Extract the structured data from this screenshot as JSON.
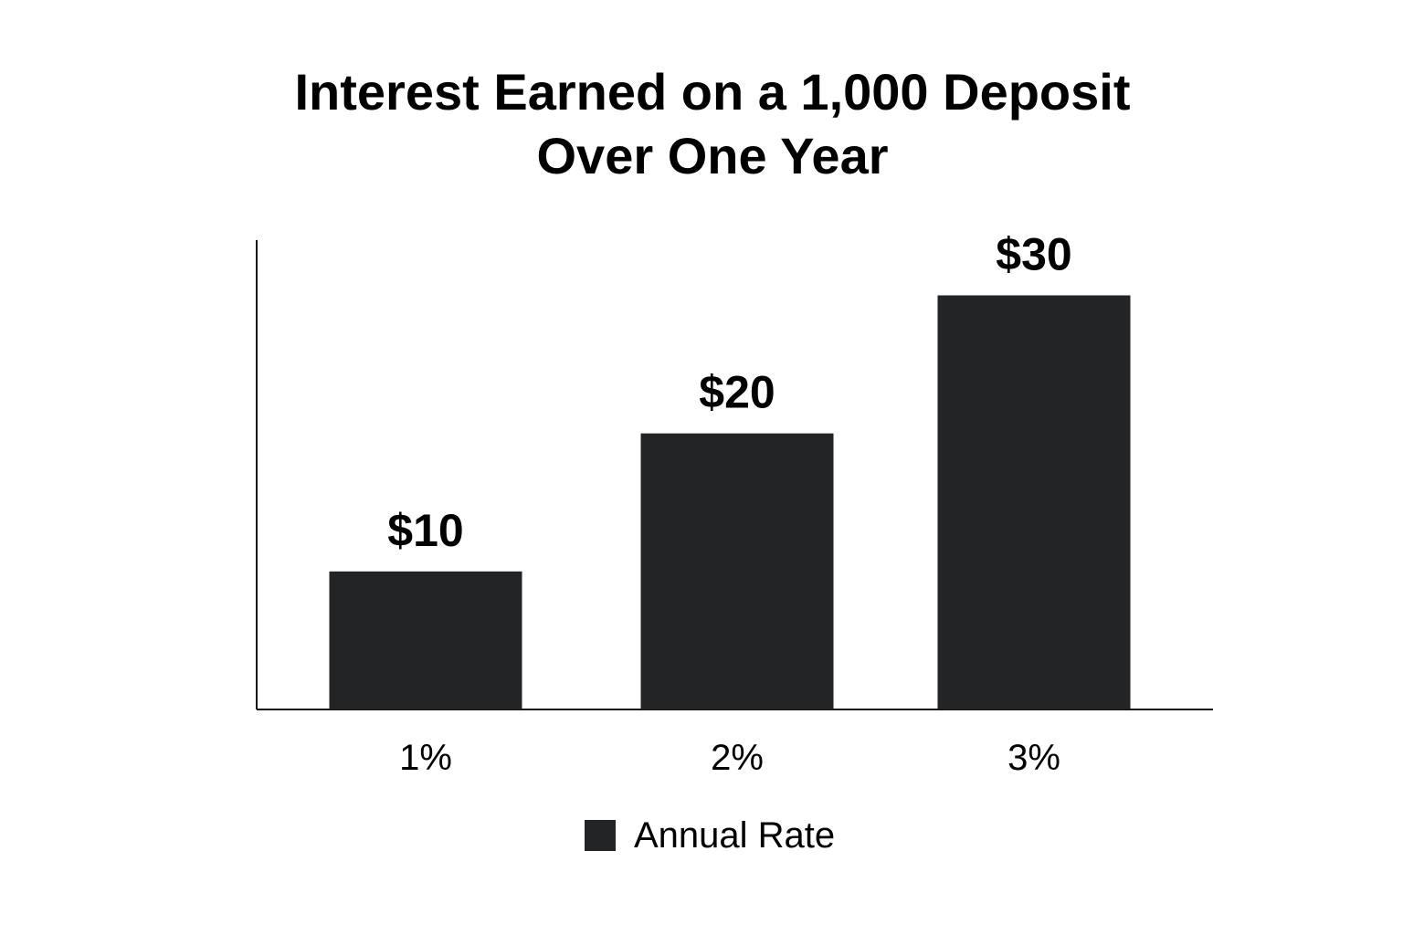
{
  "chart_data": {
    "type": "bar",
    "title": [
      "Interest Earned on a 1,000 Deposit",
      "Over One Year"
    ],
    "categories": [
      "1%",
      "2%",
      "3%"
    ],
    "values": [
      10,
      20,
      30
    ],
    "value_labels": [
      "$10",
      "$20",
      "$30"
    ],
    "xlabel": "",
    "ylabel": "",
    "ylim": [
      0,
      34
    ],
    "grid": false,
    "legend": {
      "placement": "bottom-center",
      "entries": [
        {
          "label": "Annual Rate",
          "color": "#222426"
        }
      ]
    },
    "series": [
      {
        "name": "Annual Rate",
        "values": [
          10,
          20,
          30
        ],
        "color": "#222426"
      }
    ]
  }
}
